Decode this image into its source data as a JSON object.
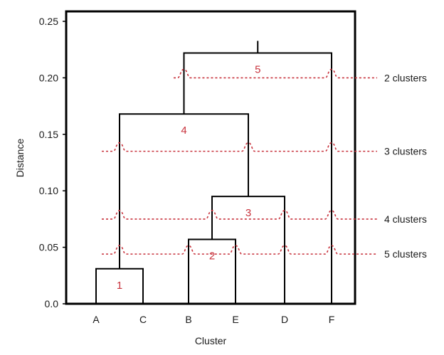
{
  "chart_data": {
    "type": "dendrogram",
    "xlabel": "Cluster",
    "ylabel": "Distance",
    "ylim": [
      0,
      0.25
    ],
    "y_ticks": [
      "0.0",
      "0.05",
      "0.10",
      "0.15",
      "0.20",
      "0.25"
    ],
    "leaves": [
      "A",
      "C",
      "B",
      "E",
      "D",
      "F"
    ],
    "merges": [
      {
        "label": "1",
        "left": "A",
        "right": "C",
        "height": 0.031
      },
      {
        "label": "2",
        "left": "B",
        "right": "E",
        "height": 0.057
      },
      {
        "label": "3",
        "left": "2",
        "right": "D",
        "height": 0.095
      },
      {
        "label": "4",
        "left": "1",
        "right": "3",
        "height": 0.168
      },
      {
        "label": "5",
        "left": "4",
        "right": "F",
        "height": 0.222
      }
    ],
    "cut_lines": [
      {
        "label": "2 clusters",
        "height": 0.2
      },
      {
        "label": "3 clusters",
        "height": 0.135
      },
      {
        "label": "4 clusters",
        "height": 0.075
      },
      {
        "label": "5 clusters",
        "height": 0.044
      }
    ],
    "colors": {
      "tree": "#000000",
      "cut": "#c8323c",
      "merge_label": "#c8323c",
      "cut_label_line": "#c8323c"
    }
  }
}
